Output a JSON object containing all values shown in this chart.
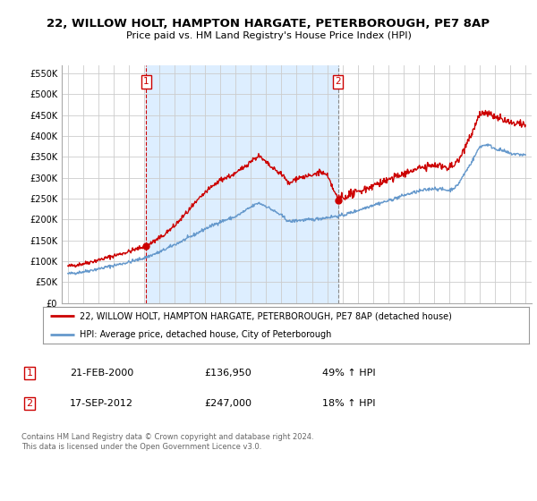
{
  "title": "22, WILLOW HOLT, HAMPTON HARGATE, PETERBOROUGH, PE7 8AP",
  "subtitle": "Price paid vs. HM Land Registry's House Price Index (HPI)",
  "ylim": [
    0,
    570000
  ],
  "yticks": [
    0,
    50000,
    100000,
    150000,
    200000,
    250000,
    300000,
    350000,
    400000,
    450000,
    500000,
    550000
  ],
  "ytick_labels": [
    "£0",
    "£50K",
    "£100K",
    "£150K",
    "£200K",
    "£250K",
    "£300K",
    "£350K",
    "£400K",
    "£450K",
    "£500K",
    "£550K"
  ],
  "hpi_color": "#6699cc",
  "price_color": "#cc0000",
  "shade_color": "#ddeeff",
  "transaction1_date": 2000.13,
  "transaction1_price": 136950,
  "transaction1_label": "1",
  "transaction2_date": 2012.72,
  "transaction2_price": 247000,
  "transaction2_label": "2",
  "legend_line1": "22, WILLOW HOLT, HAMPTON HARGATE, PETERBOROUGH, PE7 8AP (detached house)",
  "legend_line2": "HPI: Average price, detached house, City of Peterborough",
  "table_row1_num": "1",
  "table_row1_date": "21-FEB-2000",
  "table_row1_price": "£136,950",
  "table_row1_hpi": "49% ↑ HPI",
  "table_row2_num": "2",
  "table_row2_date": "17-SEP-2012",
  "table_row2_price": "£247,000",
  "table_row2_hpi": "18% ↑ HPI",
  "footer": "Contains HM Land Registry data © Crown copyright and database right 2024.\nThis data is licensed under the Open Government Licence v3.0.",
  "background_color": "#ffffff",
  "grid_color": "#cccccc",
  "xlim_left": 1994.6,
  "xlim_right": 2025.4
}
